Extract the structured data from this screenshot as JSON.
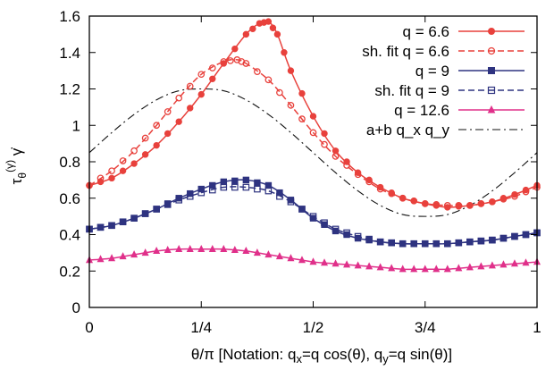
{
  "chart_data": {
    "type": "line",
    "xlabel": "θ/π   [Notation: q_x=q cos(θ), q_y=q sin(θ)]",
    "ylabel": "τ_θ^(γ) γ̇",
    "xlim": [
      0,
      1
    ],
    "ylim": [
      0,
      1.6
    ],
    "x_ticks": [
      {
        "value": 0,
        "label": "0"
      },
      {
        "value": 0.25,
        "label": "1/4"
      },
      {
        "value": 0.5,
        "label": "1/2"
      },
      {
        "value": 0.75,
        "label": "3/4"
      },
      {
        "value": 1,
        "label": "1"
      }
    ],
    "y_ticks": [
      {
        "value": 0,
        "label": "0"
      },
      {
        "value": 0.2,
        "label": "0.2"
      },
      {
        "value": 0.4,
        "label": "0.4"
      },
      {
        "value": 0.6,
        "label": "0.6"
      },
      {
        "value": 0.8,
        "label": "0.8"
      },
      {
        "value": 1.0,
        "label": "1"
      },
      {
        "value": 1.2,
        "label": "1.2"
      },
      {
        "value": 1.4,
        "label": "1.4"
      },
      {
        "value": 1.6,
        "label": "1.6"
      }
    ],
    "grid": false,
    "legend_position": "top-right",
    "series": [
      {
        "name": "q = 6.6",
        "color": "#e8413c",
        "marker": "filled-circle",
        "line": "solid",
        "x": [
          0,
          0.05,
          0.1,
          0.15,
          0.2,
          0.25,
          0.3,
          0.35,
          0.38,
          0.4,
          0.42,
          0.45,
          0.5,
          0.55,
          0.6,
          0.65,
          0.7,
          0.75,
          0.8,
          0.85,
          0.9,
          0.95,
          1.0
        ],
        "y": [
          0.67,
          0.71,
          0.79,
          0.89,
          1.02,
          1.17,
          1.34,
          1.5,
          1.56,
          1.57,
          1.5,
          1.3,
          1.05,
          0.86,
          0.74,
          0.66,
          0.6,
          0.57,
          0.55,
          0.56,
          0.58,
          0.62,
          0.67
        ]
      },
      {
        "name": "sh. fit q = 6.6",
        "color": "#e8413c",
        "marker": "open-circle",
        "line": "dashed",
        "x": [
          0,
          0.05,
          0.1,
          0.15,
          0.2,
          0.25,
          0.3,
          0.33,
          0.35,
          0.4,
          0.45,
          0.5,
          0.55,
          0.6,
          0.65,
          0.7,
          0.75,
          0.8,
          0.85,
          0.9,
          0.95,
          1.0
        ],
        "y": [
          0.67,
          0.75,
          0.86,
          1.0,
          1.15,
          1.28,
          1.35,
          1.36,
          1.34,
          1.25,
          1.11,
          0.96,
          0.83,
          0.73,
          0.65,
          0.6,
          0.57,
          0.56,
          0.56,
          0.58,
          0.61,
          0.66
        ]
      },
      {
        "name": "q = 9",
        "color": "#2e3380",
        "marker": "filled-square",
        "line": "solid",
        "x": [
          0,
          0.05,
          0.1,
          0.15,
          0.2,
          0.25,
          0.3,
          0.35,
          0.4,
          0.45,
          0.5,
          0.55,
          0.6,
          0.65,
          0.7,
          0.75,
          0.8,
          0.85,
          0.9,
          0.95,
          1.0
        ],
        "y": [
          0.43,
          0.45,
          0.49,
          0.54,
          0.6,
          0.65,
          0.69,
          0.7,
          0.67,
          0.59,
          0.49,
          0.42,
          0.38,
          0.36,
          0.35,
          0.35,
          0.35,
          0.36,
          0.37,
          0.39,
          0.41
        ]
      },
      {
        "name": "sh. fit q = 9",
        "color": "#2e3380",
        "marker": "open-square",
        "line": "dashed",
        "x": [
          0,
          0.05,
          0.1,
          0.15,
          0.2,
          0.25,
          0.3,
          0.35,
          0.4,
          0.45,
          0.5,
          0.55,
          0.6,
          0.65,
          0.7,
          0.75,
          0.8,
          0.85,
          0.9,
          0.95,
          1.0
        ],
        "y": [
          0.43,
          0.45,
          0.49,
          0.54,
          0.59,
          0.63,
          0.66,
          0.66,
          0.64,
          0.58,
          0.5,
          0.43,
          0.39,
          0.36,
          0.35,
          0.35,
          0.35,
          0.36,
          0.37,
          0.39,
          0.41
        ]
      },
      {
        "name": "q = 12.6",
        "color": "#e0308a",
        "marker": "filled-triangle",
        "line": "solid",
        "x": [
          0,
          0.05,
          0.1,
          0.15,
          0.2,
          0.25,
          0.3,
          0.35,
          0.4,
          0.45,
          0.5,
          0.55,
          0.6,
          0.65,
          0.7,
          0.75,
          0.8,
          0.85,
          0.9,
          0.95,
          1.0
        ],
        "y": [
          0.26,
          0.27,
          0.29,
          0.31,
          0.32,
          0.32,
          0.32,
          0.31,
          0.29,
          0.27,
          0.25,
          0.24,
          0.23,
          0.22,
          0.21,
          0.21,
          0.21,
          0.22,
          0.23,
          0.24,
          0.25
        ]
      },
      {
        "name": "a+b q_x q_y",
        "color": "#111111",
        "marker": "none",
        "line": "dashdot",
        "x": [
          0,
          0.05,
          0.1,
          0.15,
          0.2,
          0.25,
          0.3,
          0.35,
          0.4,
          0.45,
          0.5,
          0.55,
          0.6,
          0.65,
          0.7,
          0.75,
          0.8,
          0.85,
          0.9,
          0.95,
          1.0
        ],
        "y": [
          0.85,
          0.96,
          1.06,
          1.14,
          1.19,
          1.2,
          1.19,
          1.14,
          1.06,
          0.96,
          0.85,
          0.74,
          0.64,
          0.56,
          0.51,
          0.5,
          0.51,
          0.56,
          0.64,
          0.74,
          0.85
        ]
      }
    ]
  }
}
